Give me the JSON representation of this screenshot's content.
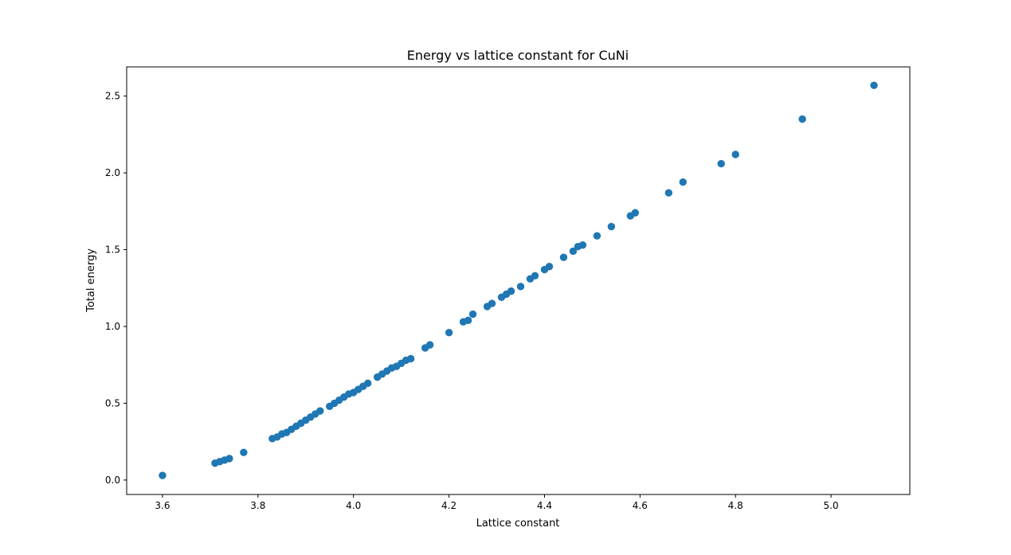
{
  "chart_data": {
    "type": "scatter",
    "title": "Energy vs lattice constant for CuNi",
    "xlabel": "Lattice constant",
    "ylabel": "Total energy",
    "xlim": [
      3.525,
      5.165
    ],
    "ylim": [
      -0.094,
      2.69
    ],
    "xticks": [
      3.6,
      3.8,
      4.0,
      4.2,
      4.4,
      4.6,
      4.8,
      5.0
    ],
    "xtick_labels": [
      "3.6",
      "3.8",
      "4.0",
      "4.2",
      "4.4",
      "4.6",
      "4.8",
      "5.0"
    ],
    "yticks": [
      0.0,
      0.5,
      1.0,
      1.5,
      2.0,
      2.5
    ],
    "ytick_labels": [
      "0.0",
      "0.5",
      "1.0",
      "1.5",
      "2.0",
      "2.5"
    ],
    "grid": false,
    "legend": "none",
    "marker_color": "#1f77b4",
    "series": [
      {
        "x": [
          3.6,
          3.71,
          3.72,
          3.73,
          3.74,
          3.77,
          3.83,
          3.84,
          3.85,
          3.86,
          3.87,
          3.88,
          3.89,
          3.9,
          3.91,
          3.92,
          3.93,
          3.95,
          3.96,
          3.97,
          3.98,
          3.99,
          4.0,
          4.01,
          4.02,
          4.03,
          4.05,
          4.06,
          4.07,
          4.08,
          4.09,
          4.1,
          4.11,
          4.12,
          4.15,
          4.16,
          4.2,
          4.23,
          4.24,
          4.25,
          4.28,
          4.29,
          4.31,
          4.32,
          4.33,
          4.35,
          4.37,
          4.38,
          4.4,
          4.41,
          4.44,
          4.46,
          4.47,
          4.48,
          4.51,
          4.54,
          4.58,
          4.59,
          4.66,
          4.69,
          4.77,
          4.8,
          4.94,
          5.09
        ],
        "y": [
          0.03,
          0.11,
          0.12,
          0.13,
          0.14,
          0.18,
          0.27,
          0.28,
          0.3,
          0.31,
          0.33,
          0.35,
          0.37,
          0.39,
          0.41,
          0.43,
          0.45,
          0.48,
          0.5,
          0.52,
          0.54,
          0.56,
          0.57,
          0.59,
          0.61,
          0.63,
          0.67,
          0.69,
          0.71,
          0.73,
          0.74,
          0.76,
          0.78,
          0.79,
          0.86,
          0.88,
          0.96,
          1.03,
          1.04,
          1.08,
          1.13,
          1.15,
          1.19,
          1.21,
          1.23,
          1.26,
          1.31,
          1.33,
          1.37,
          1.39,
          1.45,
          1.49,
          1.52,
          1.53,
          1.59,
          1.65,
          1.72,
          1.74,
          1.87,
          1.94,
          2.06,
          2.12,
          2.35,
          2.57
        ]
      }
    ]
  }
}
